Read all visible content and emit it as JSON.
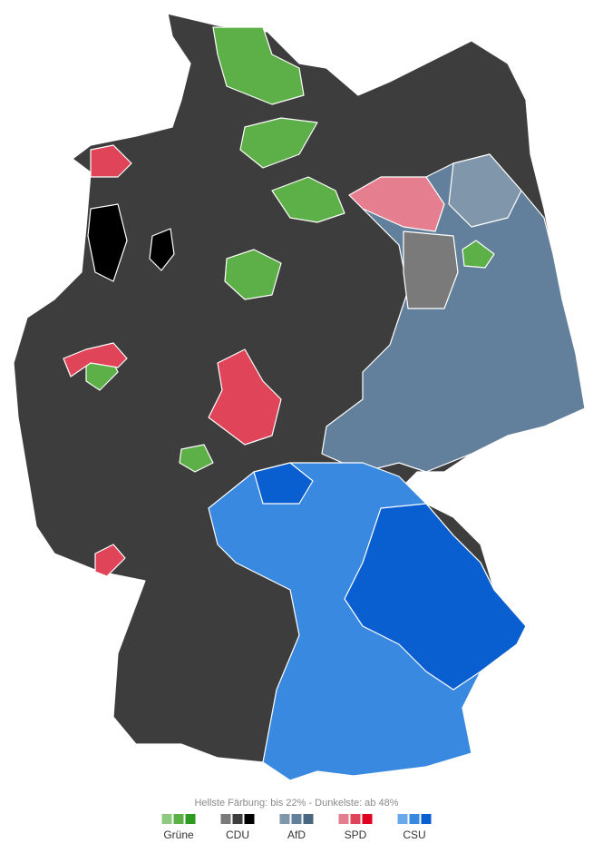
{
  "legend": {
    "note": "Hellste Färbung: bis 22%  -  Dunkelste: ab 48%",
    "parties": [
      {
        "name": "Grüne",
        "colors": [
          "#8dc97f",
          "#5daf47",
          "#2e9a1f"
        ]
      },
      {
        "name": "CDU",
        "colors": [
          "#7a7a7a",
          "#3d3d3d",
          "#000000"
        ]
      },
      {
        "name": "AfD",
        "colors": [
          "#8096ab",
          "#62809b",
          "#4a6782"
        ]
      },
      {
        "name": "SPD",
        "colors": [
          "#e57e8e",
          "#e04459",
          "#e0001f"
        ]
      },
      {
        "name": "CSU",
        "colors": [
          "#6aa8ea",
          "#3a89e0",
          "#0a5fd0"
        ]
      }
    ]
  }
}
